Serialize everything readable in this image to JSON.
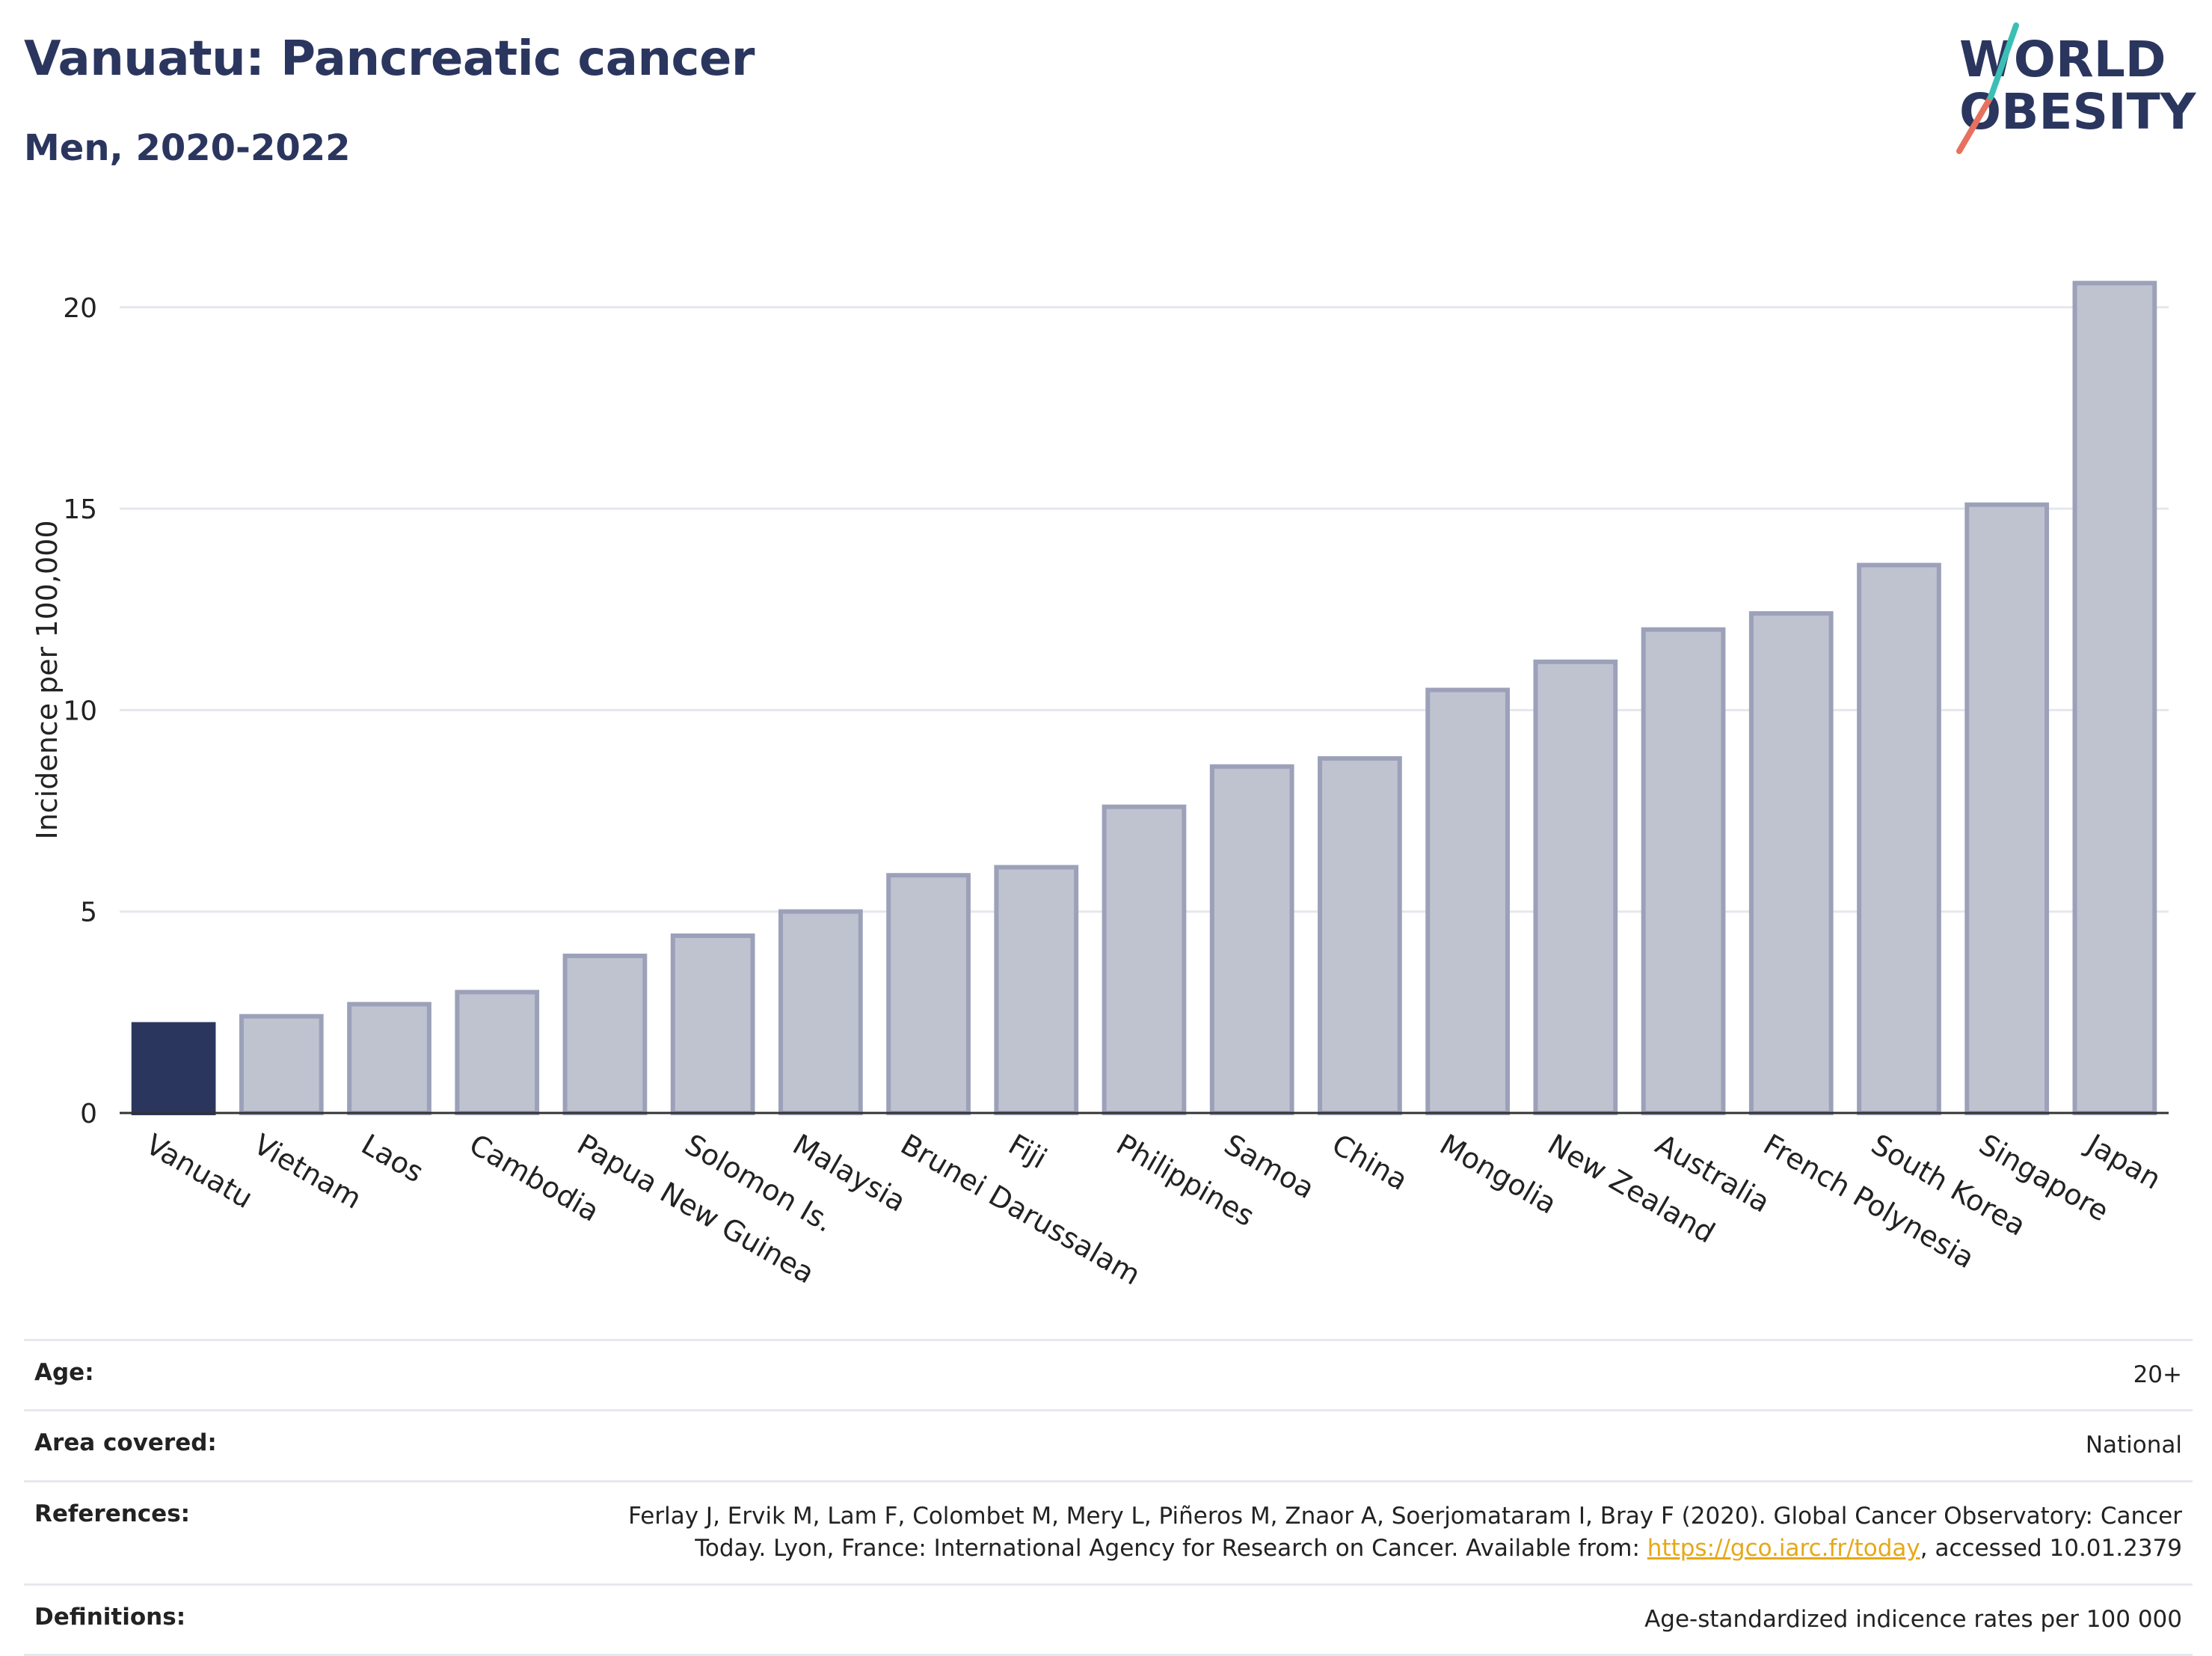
{
  "title": "Vanuatu: Pancreatic cancer",
  "subtitle": "Men, 2020-2022",
  "logo": {
    "line1": "WORLD",
    "line2": "OBESITY"
  },
  "colors": {
    "highlight": "#2b365f",
    "bar": "#bfc3d0",
    "bar_border": "#9ca1b9",
    "axis": "#333333",
    "grid": "#e5e7ee",
    "accent_teal": "#3bbfb5",
    "accent_coral": "#e8705e"
  },
  "chart_data": {
    "type": "bar",
    "categories": [
      "Vanuatu",
      "Vietnam",
      "Laos",
      "Cambodia",
      "Papua New Guinea",
      "Solomon Is.",
      "Malaysia",
      "Brunei Darussalam",
      "Fiji",
      "Philippines",
      "Samoa",
      "China",
      "Mongolia",
      "New Zealand",
      "Australia",
      "French Polynesia",
      "South Korea",
      "Singapore",
      "Japan"
    ],
    "values": [
      2.2,
      2.4,
      2.7,
      3.0,
      3.9,
      4.4,
      5.0,
      5.9,
      6.1,
      7.6,
      8.6,
      8.8,
      10.5,
      11.2,
      12.0,
      12.4,
      13.6,
      15.1,
      20.6
    ],
    "highlight": "Vanuatu",
    "ylabel": "Incidence per 100,000",
    "xlabel": "",
    "ylim": [
      0,
      21.5
    ],
    "yticks": [
      0,
      5,
      10,
      15,
      20
    ],
    "grid": true
  },
  "footer": {
    "age_label": "Age:",
    "age_value": "20+",
    "area_label": "Area covered:",
    "area_value": "National",
    "ref_label": "References:",
    "ref_text_1": "Ferlay J, Ervik M, Lam F, Colombet M, Mery L, Piñeros M, Znaor A, Soerjomataram I, Bray F (2020). Global Cancer Observatory: Cancer",
    "ref_text_2": "Today. Lyon, France: International Agency for Research on Cancer. Available from: ",
    "ref_link": "https://gco.iarc.fr/today",
    "ref_text_3": ", accessed 10.01.2379",
    "def_label": "Definitions:",
    "def_value": "Age-standardized indicence rates per 100 000"
  }
}
